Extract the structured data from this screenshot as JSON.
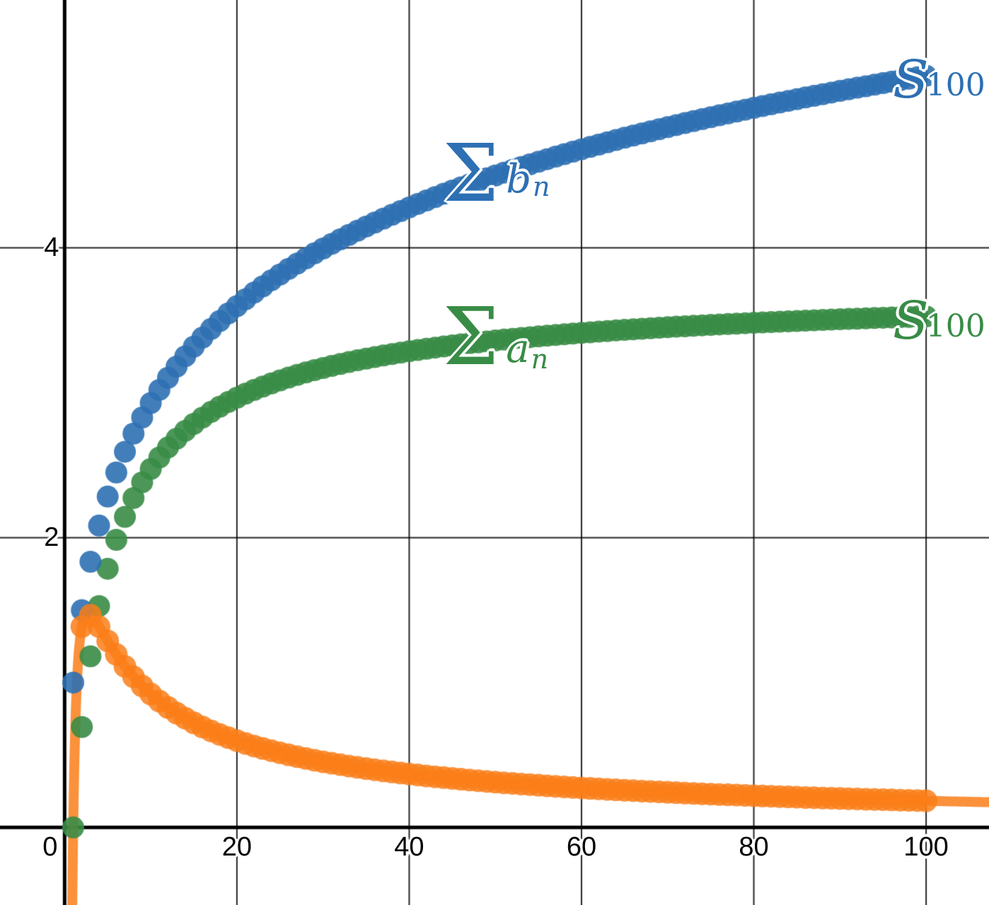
{
  "page": {
    "background": "#ffffff"
  },
  "chart_data": {
    "type": "scatter",
    "description": "Graph comparing partial sums of two series with the ratio of their terms (limit comparison test demo)",
    "xlim": [
      -7.5,
      107.3
    ],
    "ylim": [
      -0.535,
      5.71
    ],
    "grid": {
      "x_step": 20,
      "y_step": 2,
      "color": "rgba(0,0,0,0.85)",
      "width": 2,
      "visible": true
    },
    "axes": {
      "color": "#000000",
      "width": 5,
      "x_ticks": [
        {
          "label": "0",
          "value": 0
        },
        {
          "label": "20",
          "value": 20
        },
        {
          "label": "40",
          "value": 40
        },
        {
          "label": "60",
          "value": 60
        },
        {
          "label": "80",
          "value": 80
        },
        {
          "label": "100",
          "value": 100
        }
      ],
      "y_ticks": [
        {
          "label": "2",
          "value": 2
        },
        {
          "label": "4",
          "value": 4
        }
      ]
    },
    "series": [
      {
        "name": "ratio-term-curve",
        "term": "4·ln(x)/x",
        "mode": "curve",
        "x_range": [
          0.5,
          107.5
        ],
        "line_width": 14,
        "color": "rgba(250,126,25,0.85)",
        "sample_points": [
          [
            1,
            0
          ],
          [
            2,
            1.386
          ],
          [
            2.718,
            1.472
          ],
          [
            5,
            1.288
          ],
          [
            10,
            0.921
          ],
          [
            50,
            0.313
          ],
          [
            100,
            0.184
          ],
          [
            107.3,
            0.174
          ]
        ]
      },
      {
        "name": "an-partial-sums",
        "mode": "cumsum",
        "term": "4·ln(n)/n²",
        "n_range": [
          1,
          100
        ],
        "point_radius": 15.5,
        "color": "rgba(56,140,70,0.9)",
        "label_color": "#388c46",
        "endpoint_value": 3.527,
        "sample_points": [
          [
            1,
            0
          ],
          [
            2,
            0.693
          ],
          [
            3,
            1.181
          ],
          [
            4,
            1.528
          ],
          [
            5,
            1.786
          ],
          [
            6,
            1.985
          ],
          [
            7,
            2.143
          ],
          [
            8,
            2.273
          ],
          [
            9,
            2.382
          ],
          [
            10,
            2.474
          ],
          [
            20,
            2.966
          ],
          [
            40,
            3.286
          ],
          [
            60,
            3.413
          ],
          [
            80,
            3.483
          ],
          [
            100,
            3.527
          ]
        ]
      },
      {
        "name": "bn-partial-sums",
        "mode": "cumsum",
        "term": "1/n",
        "n_range": [
          1,
          100
        ],
        "point_radius": 15.5,
        "color": "rgba(45,112,179,0.9)",
        "label_color": "#2d70b3",
        "endpoint_value": 5.187,
        "sample_points": [
          [
            1,
            1
          ],
          [
            2,
            1.5
          ],
          [
            3,
            1.833
          ],
          [
            4,
            2.083
          ],
          [
            5,
            2.283
          ],
          [
            6,
            2.45
          ],
          [
            7,
            2.593
          ],
          [
            8,
            2.718
          ],
          [
            9,
            2.829
          ],
          [
            10,
            2.929
          ],
          [
            20,
            3.598
          ],
          [
            40,
            4.279
          ],
          [
            60,
            4.68
          ],
          [
            80,
            4.965
          ],
          [
            100,
            5.187
          ]
        ]
      },
      {
        "name": "ratio-term-points",
        "mode": "points",
        "term": "4·ln(x)/x",
        "n_range": [
          2,
          100
        ],
        "point_radius": 16,
        "color": "rgba(250,126,25,0.85)",
        "sample_points": [
          [
            2,
            1.386
          ],
          [
            3,
            1.465
          ],
          [
            4,
            1.386
          ],
          [
            5,
            1.288
          ],
          [
            6,
            1.194
          ],
          [
            7,
            1.112
          ],
          [
            8,
            1.04
          ],
          [
            9,
            0.977
          ],
          [
            10,
            0.921
          ],
          [
            20,
            0.599
          ],
          [
            40,
            0.369
          ],
          [
            60,
            0.273
          ],
          [
            80,
            0.219
          ],
          [
            100,
            0.184
          ]
        ]
      }
    ],
    "legend_position": "none"
  },
  "labels": {
    "sum_bn": {
      "sigma": "Σ",
      "letter": "b",
      "sub": "n"
    },
    "sum_an": {
      "sigma": "Σ",
      "letter": "a",
      "sub": "n"
    },
    "s100_blue": {
      "letter": "S",
      "sub": "100"
    },
    "s100_green": {
      "letter": "S",
      "sub": "100"
    }
  }
}
